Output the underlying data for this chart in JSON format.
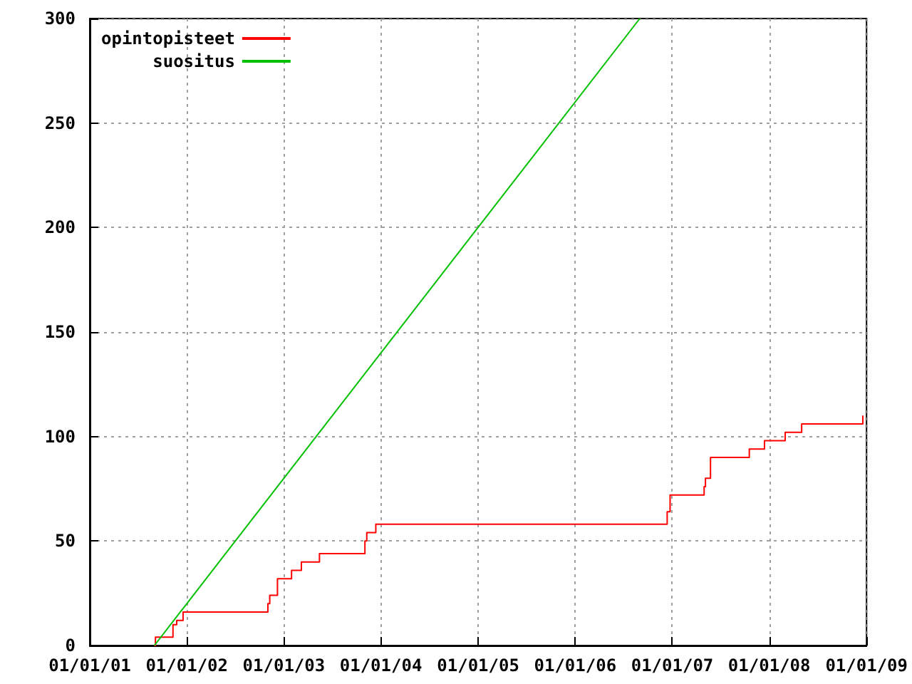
{
  "chart_data": {
    "type": "step",
    "xlim": [
      "2001-01-01",
      "2009-01-01"
    ],
    "xticks": [
      {
        "value": "2001-01-01",
        "label": "01/01/01"
      },
      {
        "value": "2002-01-01",
        "label": "01/01/02"
      },
      {
        "value": "2003-01-01",
        "label": "01/01/03"
      },
      {
        "value": "2004-01-01",
        "label": "01/01/04"
      },
      {
        "value": "2005-01-01",
        "label": "01/01/05"
      },
      {
        "value": "2006-01-01",
        "label": "01/01/06"
      },
      {
        "value": "2007-01-01",
        "label": "01/01/07"
      },
      {
        "value": "2008-01-01",
        "label": "01/01/08"
      },
      {
        "value": "2009-01-01",
        "label": "01/01/09"
      }
    ],
    "ylim": [
      0,
      300
    ],
    "yticks": [
      0,
      50,
      100,
      150,
      200,
      250,
      300
    ],
    "grid": true,
    "legend": "top left",
    "series": [
      {
        "name": "opintopisteet",
        "color": "#ff0000",
        "x": [
          "2001-09-01",
          "2001-09-05",
          "2001-11-10",
          "2001-11-24",
          "2001-12-18",
          "2002-11-02",
          "2002-11-09",
          "2002-12-08",
          "2003-01-30",
          "2003-03-08",
          "2003-05-15",
          "2003-11-02",
          "2003-11-09",
          "2003-12-13",
          "2006-12-13",
          "2006-12-24",
          "2007-05-01",
          "2007-05-06",
          "2007-05-25",
          "2007-10-18",
          "2007-12-14",
          "2008-03-01",
          "2008-05-02",
          "2008-12-18",
          "2008-12-20"
        ],
        "values": [
          0,
          4,
          10,
          12,
          16,
          20,
          24,
          32,
          36,
          40,
          44,
          50,
          54,
          58,
          64,
          72,
          76,
          80,
          90,
          94,
          98,
          102,
          106,
          110,
          110
        ]
      },
      {
        "name": "suositus",
        "color": "#00c000",
        "type": "line",
        "x": [
          "2001-09-01",
          "2006-09-01"
        ],
        "values": [
          0,
          300
        ]
      }
    ]
  }
}
